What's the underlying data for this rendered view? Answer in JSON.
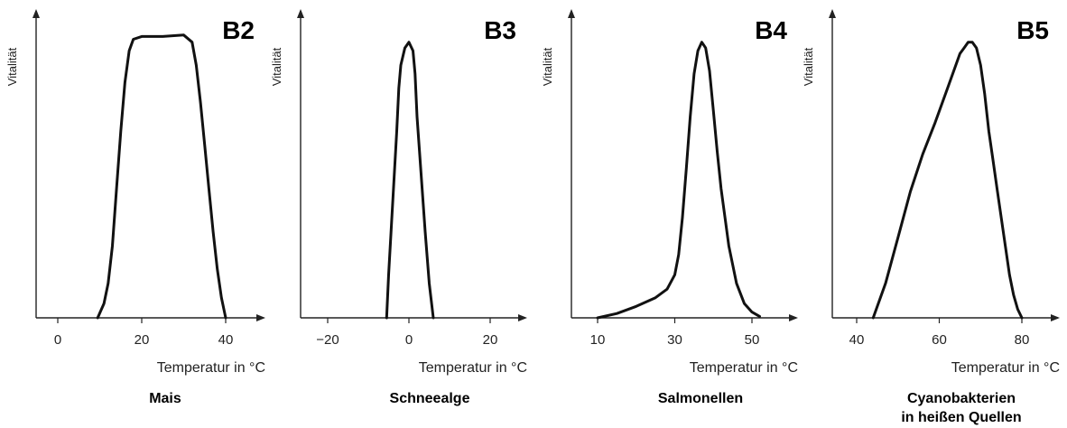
{
  "chart_data": [
    {
      "type": "line",
      "panel_label": "B2",
      "caption": [
        "Mais"
      ],
      "xlabel": "Temperatur in °C",
      "ylabel": "Vitalität",
      "xticks": [
        0,
        20,
        40
      ],
      "xlim": [
        -6,
        50
      ],
      "ylim": [
        0,
        100
      ],
      "series": [
        {
          "x": [
            9.5,
            11,
            12,
            13,
            14,
            15,
            16,
            17,
            18,
            20,
            25,
            30,
            32,
            33,
            34,
            35,
            36,
            37,
            38,
            39,
            40
          ],
          "y": [
            0,
            5,
            12,
            25,
            45,
            65,
            82,
            93,
            97,
            98,
            98,
            98.5,
            96,
            88,
            75,
            60,
            45,
            30,
            17,
            7,
            0
          ]
        }
      ]
    },
    {
      "type": "line",
      "panel_label": "B3",
      "caption": [
        "Schneealge"
      ],
      "xlabel": "Temperatur in °C",
      "ylabel": "Vitalität",
      "xticks": [
        -20,
        0,
        20
      ],
      "xlim": [
        -26,
        30
      ],
      "ylim": [
        0,
        100
      ],
      "series": [
        {
          "x": [
            -5.5,
            -5,
            -4,
            -3,
            -2.5,
            -2,
            -1,
            0,
            1,
            1.5,
            2,
            3,
            4,
            5,
            6
          ],
          "y": [
            0,
            15,
            40,
            65,
            80,
            88,
            94,
            96,
            93,
            85,
            70,
            50,
            30,
            12,
            0
          ]
        }
      ]
    },
    {
      "type": "line",
      "panel_label": "B4",
      "caption": [
        "Salmonellen"
      ],
      "xlabel": "Temperatur in °C",
      "ylabel": "Vitalität",
      "xticks": [
        10,
        30,
        50
      ],
      "xlim": [
        4,
        60
      ],
      "ylim": [
        0,
        100
      ],
      "series": [
        {
          "x": [
            10,
            15,
            20,
            25,
            28,
            30,
            31,
            32,
            33,
            34,
            35,
            36,
            37,
            38,
            39,
            40,
            41,
            42,
            43,
            44,
            46,
            48,
            50,
            52
          ],
          "y": [
            0,
            1.5,
            4,
            7,
            10,
            15,
            22,
            35,
            52,
            70,
            85,
            93,
            96,
            94,
            86,
            72,
            58,
            45,
            35,
            25,
            12,
            5,
            2,
            0.5
          ]
        }
      ]
    },
    {
      "type": "line",
      "panel_label": "B5",
      "caption": [
        "Cyanobakterien",
        "in heißen Quellen"
      ],
      "xlabel": "Temperatur in °C",
      "ylabel": "Vitalität",
      "xticks": [
        40,
        60,
        80
      ],
      "xlim": [
        36,
        92
      ],
      "ylim": [
        0,
        100
      ],
      "series": [
        {
          "x": [
            44,
            47,
            50,
            53,
            56,
            59,
            62,
            64,
            65,
            66,
            67,
            68,
            69,
            70,
            71,
            72,
            73,
            74,
            75,
            76,
            77,
            78,
            79,
            80
          ],
          "y": [
            0,
            12,
            28,
            44,
            57,
            68,
            80,
            88,
            92,
            94,
            96,
            96,
            94,
            88,
            78,
            65,
            55,
            45,
            35,
            25,
            15,
            8,
            3,
            0
          ]
        }
      ]
    }
  ]
}
